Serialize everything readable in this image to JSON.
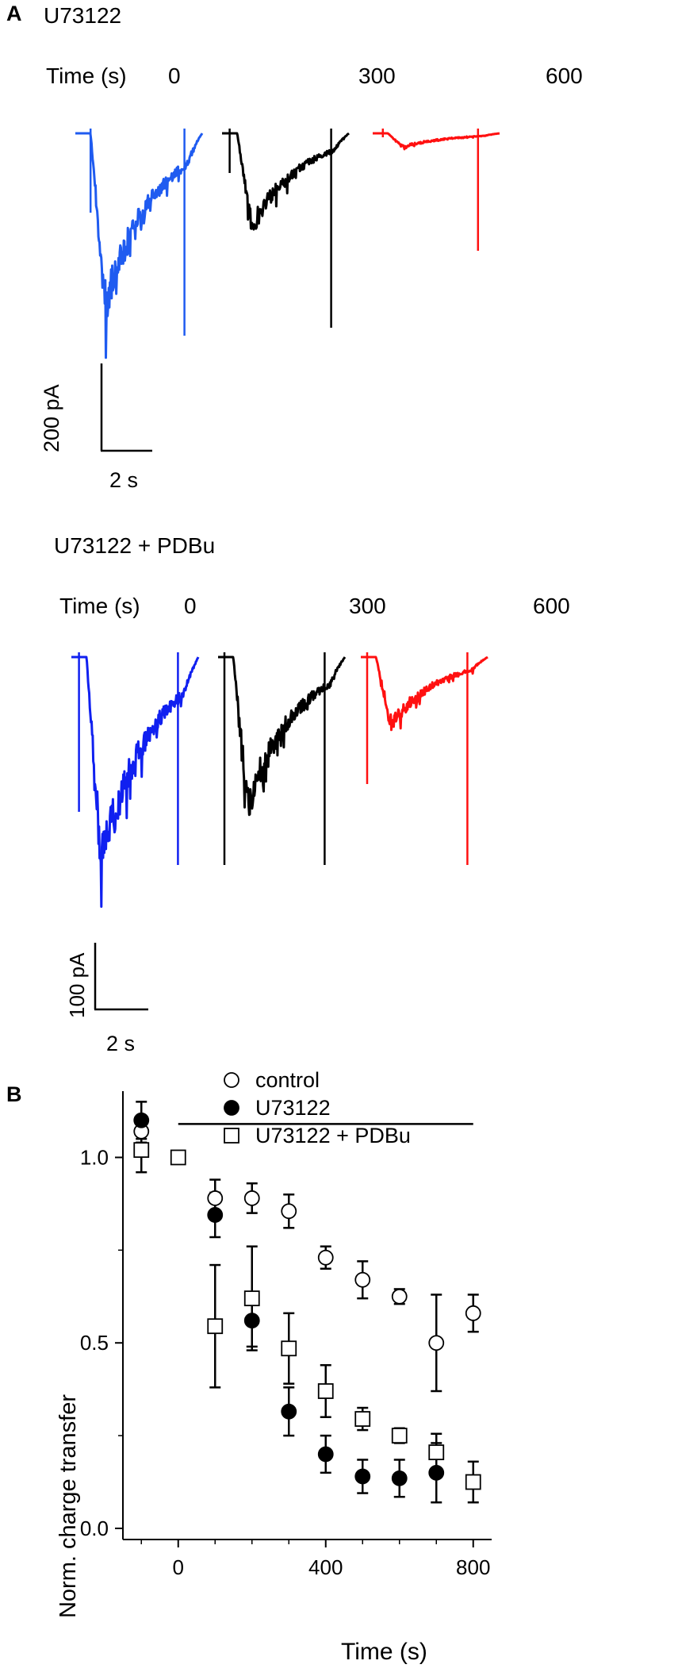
{
  "panel_a": {
    "letter": "A",
    "rows": [
      {
        "condition": "U73122",
        "time_label": "Time (s)",
        "time_points": [
          "0",
          "300",
          "600"
        ],
        "scale_y": "200 pA",
        "scale_x": "2 s",
        "trace_colors": [
          "#1f5bf0",
          "#000000",
          "#ff1010"
        ],
        "peak_depth": [
          1.0,
          0.55,
          0.06
        ]
      },
      {
        "condition": "U73122 + PDBu",
        "time_label": "Time (s)",
        "time_points": [
          "0",
          "300",
          "600"
        ],
        "scale_y": "100 pA",
        "scale_x": "2 s",
        "trace_colors": [
          "#1020f0",
          "#000000",
          "#ff1010"
        ],
        "peak_depth": [
          1.0,
          0.72,
          0.33
        ]
      }
    ]
  },
  "chart_data": {
    "panel_letter": "B",
    "type": "scatter",
    "xlabel": "Time (s)",
    "ylabel": "Norm. charge transfer",
    "xlim": [
      -150,
      850
    ],
    "ylim": [
      -0.03,
      1.2
    ],
    "x_ticks": [
      0,
      400,
      800
    ],
    "x_tick_labels": [
      "0",
      "400",
      "800"
    ],
    "y_ticks": [
      0.0,
      0.5,
      1.0
    ],
    "y_tick_labels": [
      "0.0",
      "0.5",
      "1.0"
    ],
    "drug_bar": {
      "x_start": 0,
      "x_end": 800,
      "y": 1.09
    },
    "legend_position": "top",
    "series": [
      {
        "name": "control",
        "marker": "open-circle",
        "x": [
          -100,
          100,
          200,
          300,
          400,
          500,
          600,
          700,
          800
        ],
        "y": [
          1.07,
          0.89,
          0.89,
          0.855,
          0.73,
          0.67,
          0.625,
          0.5,
          0.58
        ],
        "err": [
          0.03,
          0.05,
          0.04,
          0.045,
          0.03,
          0.05,
          0.02,
          0.13,
          0.05
        ]
      },
      {
        "name": "U73122",
        "marker": "filled-circle",
        "x": [
          -100,
          100,
          300,
          400,
          500,
          600,
          700
        ],
        "y": [
          1.1,
          0.845,
          0.315,
          0.2,
          0.14,
          0.135,
          0.15
        ],
        "err": [
          0.05,
          0.06,
          0.065,
          0.05,
          0.045,
          0.05,
          0.08
        ]
      },
      {
        "name": "U73122 + PDBu",
        "marker": "open-square",
        "x": [
          -100,
          0,
          100,
          200,
          300,
          400,
          500,
          600,
          700,
          800
        ],
        "y": [
          1.02,
          1.0,
          0.545,
          0.62,
          0.485,
          0.37,
          0.295,
          0.25,
          0.205,
          0.125
        ],
        "err": [
          0.06,
          0.0,
          0.165,
          0.14,
          0.095,
          0.07,
          0.03,
          0.02,
          0.05,
          0.055
        ]
      }
    ],
    "extra_point": {
      "series": "U73122",
      "x": 200,
      "y": 0.56,
      "err": 0.07
    }
  }
}
